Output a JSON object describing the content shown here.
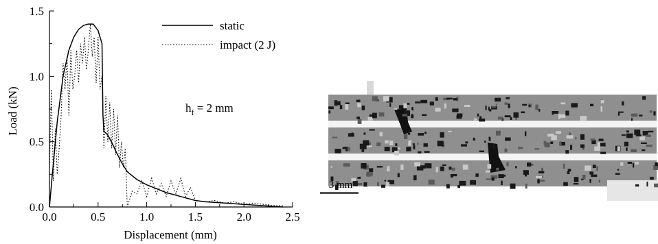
{
  "chart_data": {
    "type": "line",
    "title": "",
    "xlabel": "Displacement (mm)",
    "ylabel": "Load (kN)",
    "xlim": [
      0.0,
      2.5
    ],
    "ylim": [
      0.0,
      1.5
    ],
    "xticks": [
      "0.0",
      "0.5",
      "1.0",
      "1.5",
      "2.0",
      "2.5"
    ],
    "yticks": [
      "0.0",
      "0.5",
      "1.0",
      "1.5"
    ],
    "annotation": {
      "main": "h",
      "sub": "f",
      "rest": " = 2 mm"
    },
    "legend_position": "top-right",
    "grid": false,
    "series": [
      {
        "name": "static",
        "style": "solid",
        "x": [
          0.0,
          0.03,
          0.08,
          0.14,
          0.2,
          0.25,
          0.3,
          0.35,
          0.4,
          0.45,
          0.5,
          0.54,
          0.55,
          0.56,
          0.6,
          0.65,
          0.7,
          0.75,
          0.8,
          0.9,
          1.0,
          1.1,
          1.2,
          1.3,
          1.4,
          1.5,
          1.6,
          1.8,
          2.0,
          2.2,
          2.4
        ],
        "y": [
          0.0,
          0.25,
          0.65,
          1.0,
          1.2,
          1.3,
          1.36,
          1.39,
          1.4,
          1.4,
          1.35,
          1.25,
          0.7,
          0.58,
          0.55,
          0.48,
          0.4,
          0.33,
          0.27,
          0.21,
          0.17,
          0.14,
          0.11,
          0.09,
          0.07,
          0.05,
          0.04,
          0.03,
          0.02,
          0.01,
          0.0
        ]
      },
      {
        "name": "impact (2 J)",
        "style": "dotted",
        "x": [
          0.0,
          0.02,
          0.04,
          0.06,
          0.08,
          0.1,
          0.12,
          0.14,
          0.16,
          0.18,
          0.2,
          0.22,
          0.24,
          0.26,
          0.28,
          0.3,
          0.32,
          0.34,
          0.36,
          0.38,
          0.4,
          0.42,
          0.44,
          0.46,
          0.48,
          0.5,
          0.52,
          0.54,
          0.56,
          0.58,
          0.6,
          0.62,
          0.64,
          0.66,
          0.68,
          0.7,
          0.72,
          0.74,
          0.76,
          0.78,
          0.8,
          0.85,
          0.9,
          0.95,
          1.0,
          1.05,
          1.1,
          1.15,
          1.2,
          1.25,
          1.3,
          1.35,
          1.4,
          1.45,
          1.5,
          1.6,
          1.7,
          1.8,
          1.9,
          2.0,
          2.1,
          2.2,
          2.3,
          2.4
        ],
        "y": [
          0.3,
          0.9,
          0.2,
          0.6,
          0.25,
          0.45,
          0.7,
          1.1,
          0.9,
          1.15,
          0.7,
          1.2,
          0.9,
          1.0,
          1.2,
          0.95,
          1.25,
          1.1,
          1.3,
          1.05,
          1.2,
          1.4,
          1.15,
          1.3,
          0.95,
          1.3,
          0.9,
          1.0,
          0.45,
          0.85,
          0.5,
          0.8,
          0.45,
          0.75,
          0.4,
          0.7,
          0.3,
          0.5,
          0.3,
          0.45,
          0.0,
          0.12,
          0.1,
          0.2,
          0.08,
          0.22,
          0.1,
          0.18,
          0.08,
          0.2,
          0.1,
          0.22,
          0.08,
          0.15,
          0.05,
          0.04,
          0.05,
          0.03,
          0.04,
          0.02,
          0.03,
          0.02,
          0.01,
          0.01
        ]
      }
    ]
  },
  "micrograph": {
    "scale_label": "3 mm"
  }
}
